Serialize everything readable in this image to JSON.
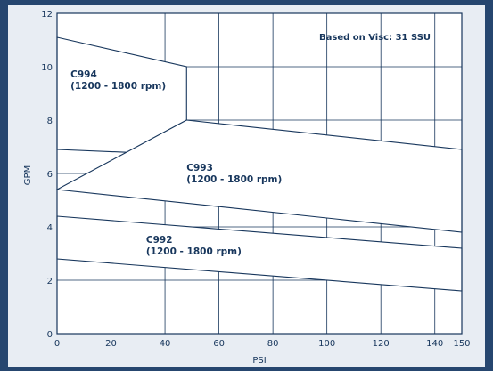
{
  "chart_data": {
    "type": "area",
    "xlabel": "PSI",
    "ylabel": "GPM",
    "xlim": [
      0,
      150
    ],
    "ylim": [
      0,
      12
    ],
    "x_ticks": [
      0,
      20,
      40,
      60,
      80,
      100,
      120,
      140,
      150
    ],
    "y_ticks": [
      0,
      2,
      4,
      6,
      8,
      10,
      12
    ],
    "grid_x": [
      0,
      20,
      40,
      60,
      80,
      100,
      120,
      140,
      150
    ],
    "grid_y": [
      0,
      2,
      4,
      6,
      8,
      10,
      12
    ],
    "grid": true,
    "annotation": "Based on Visc: 31 SSU",
    "regions": [
      {
        "label_line1": "C994",
        "label_line2": "(1200 - 1800 rpm)",
        "upper": [
          [
            0,
            11.1
          ],
          [
            48,
            10.0
          ]
        ],
        "lower": [
          [
            0,
            6.9
          ],
          [
            48,
            6.7
          ]
        ],
        "label_at": [
          5,
          9.6
        ]
      },
      {
        "label_line1": "C993",
        "label_line2": "(1200 - 1800 rpm)",
        "upper": [
          [
            48,
            8.0
          ],
          [
            150,
            6.9
          ]
        ],
        "lower": [
          [
            0,
            5.4
          ],
          [
            150,
            3.8
          ]
        ],
        "label_at": [
          48,
          6.1
        ]
      },
      {
        "label_line1": "C992",
        "label_line2": "(1200 - 1800 rpm)",
        "upper": [
          [
            0,
            4.4
          ],
          [
            150,
            3.2
          ]
        ],
        "lower": [
          [
            0,
            2.8
          ],
          [
            150,
            1.6
          ]
        ],
        "label_at": [
          33,
          3.4
        ]
      }
    ]
  },
  "colors": {
    "frame_outer": "#26466f",
    "frame_inner": "#e8edf3",
    "plot_bg": "#ffffff",
    "line": "#17365c"
  }
}
